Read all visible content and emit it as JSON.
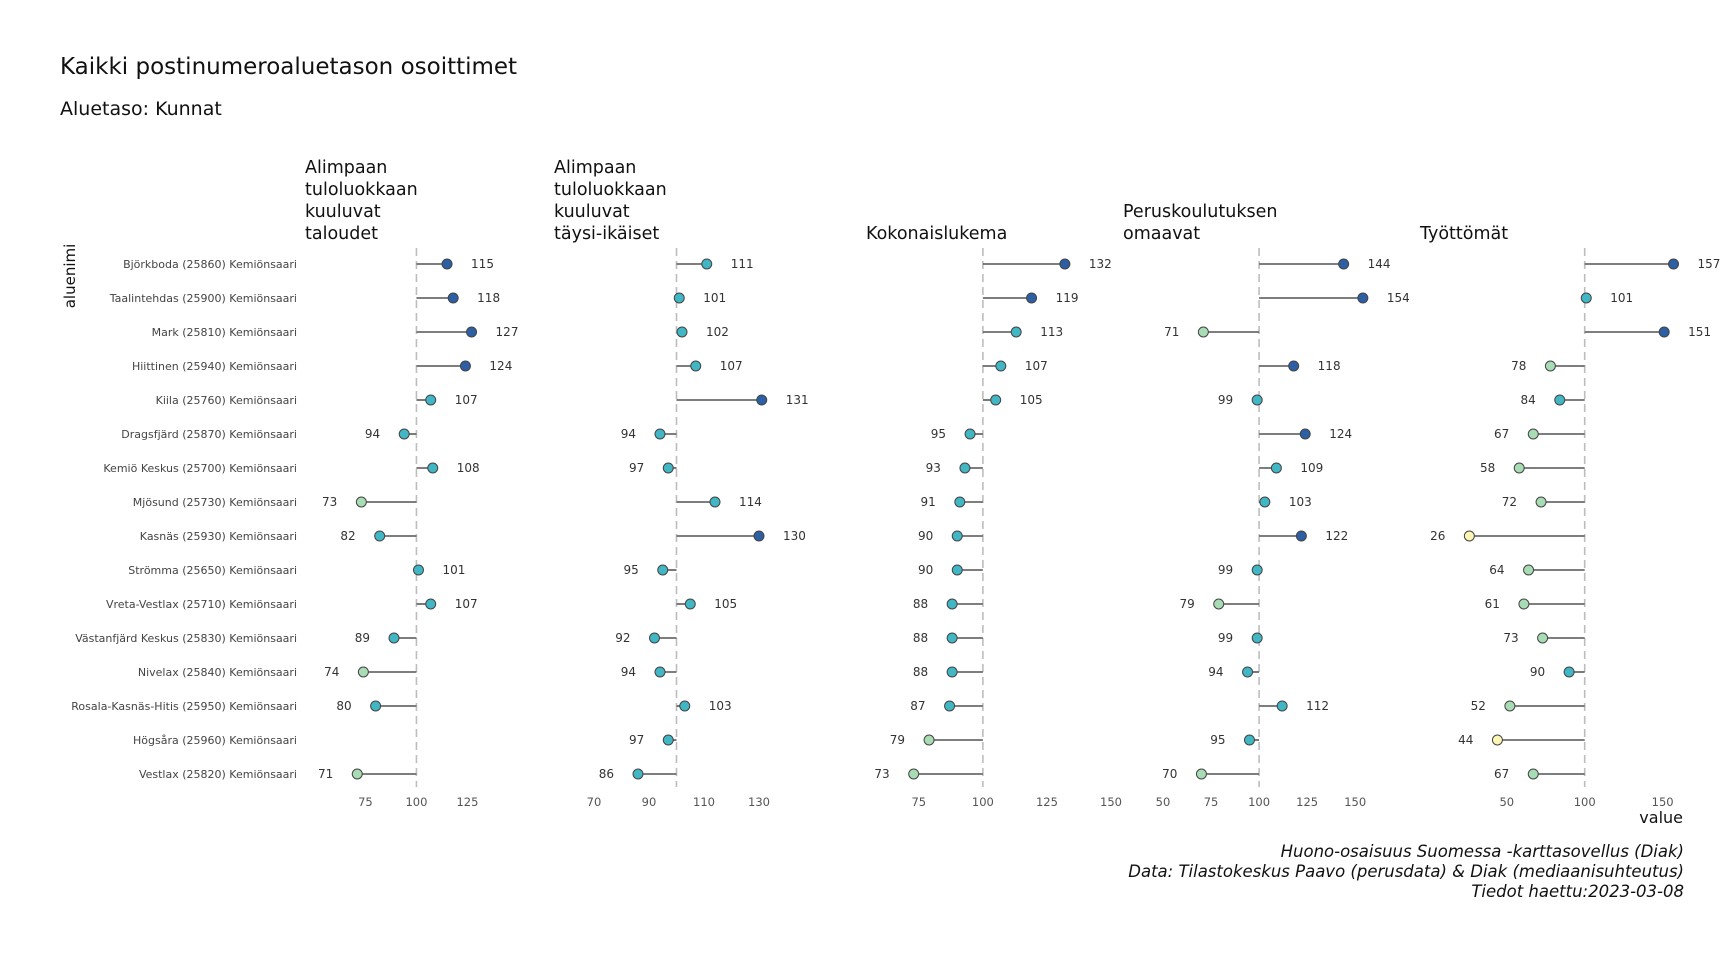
{
  "title": "Kaikki postinumeroaluetason osoittimet",
  "subtitle": "Aluetaso: Kunnat",
  "caption": {
    "line1": "Huono-osaisuus Suomessa -karttasovellus (Diak)",
    "line2": "Data: Tilastokeskus Paavo (perusdata) & Diak (mediaanisuhteutus)",
    "line3": "Tiedot haettu:2023-03-08"
  },
  "chart_data": {
    "type": "lollipop",
    "ylabel": "aluenimi",
    "xlabel": "value",
    "reference_value": 100,
    "categories": [
      "Björkboda (25860) Kemiönsaari",
      "Taalintehdas (25900) Kemiönsaari",
      "Mark (25810) Kemiönsaari",
      "Hiittinen (25940) Kemiönsaari",
      "Kiila (25760) Kemiönsaari",
      "Dragsfjärd (25870) Kemiönsaari",
      "Kemiö Keskus (25700) Kemiönsaari",
      "Mjösund (25730) Kemiönsaari",
      "Kasnäs (25930) Kemiönsaari",
      "Strömma (25650) Kemiönsaari",
      "Vreta-Vestlax (25710) Kemiönsaari",
      "Västanfjärd Keskus (25830) Kemiönsaari",
      "Nivelax (25840) Kemiönsaari",
      "Rosala-Kasnäs-Hitis (25950) Kemiönsaari",
      "Högsåra (25960) Kemiönsaari",
      "Vestlax (25820) Kemiönsaari"
    ],
    "panels": [
      {
        "title": "Alimpaan tuloluokkaan kuuluvat taloudet",
        "title_lines": [
          "Alimpaan",
          "tuloluokkaan",
          "kuuluvat",
          "taloudet"
        ],
        "xlim": [
          65,
          138
        ],
        "ticks": [
          75,
          100,
          125
        ],
        "values": [
          115,
          118,
          127,
          124,
          107,
          94,
          108,
          73,
          82,
          101,
          107,
          89,
          74,
          80,
          null,
          71
        ]
      },
      {
        "title": "Alimpaan tuloluokkaan kuuluvat täysi-ikäiset",
        "title_lines": [
          "Alimpaan",
          "tuloluokkaan",
          "kuuluvat",
          "täysi-ikäiset"
        ],
        "xlim": [
          70,
          138
        ],
        "ticks": [
          70,
          90,
          110,
          130
        ],
        "values": [
          111,
          101,
          102,
          107,
          131,
          94,
          97,
          114,
          130,
          95,
          105,
          92,
          94,
          103,
          97,
          86
        ]
      },
      {
        "title": "Kokonaislukema",
        "title_lines": [
          "Kokonaislukema"
        ],
        "xlim": [
          70,
          150
        ],
        "ticks": [
          75,
          100,
          125,
          150
        ],
        "values": [
          132,
          119,
          113,
          107,
          105,
          95,
          93,
          91,
          90,
          90,
          88,
          88,
          88,
          87,
          79,
          73
        ]
      },
      {
        "title": "Peruskoulutuksen omaavat",
        "title_lines": [
          "Peruskoulutuksen",
          "omaavat"
        ],
        "xlim": [
          50,
          165
        ],
        "ticks": [
          50,
          75,
          100,
          125,
          150
        ],
        "values": [
          144,
          154,
          71,
          118,
          99,
          124,
          109,
          103,
          122,
          99,
          79,
          99,
          94,
          112,
          95,
          70
        ]
      },
      {
        "title": "Työttömät",
        "title_lines": [
          "Työttömät"
        ],
        "xlim": [
          20,
          165
        ],
        "ticks": [
          50,
          100,
          150
        ],
        "values": [
          157,
          101,
          151,
          78,
          84,
          67,
          58,
          72,
          26,
          64,
          61,
          73,
          90,
          52,
          44,
          67
        ]
      }
    ],
    "color_scale": [
      {
        "max": 50,
        "color": "#fbf6b4"
      },
      {
        "max": 80,
        "color": "#a8dcb5"
      },
      {
        "max": 115,
        "color": "#41b6c4"
      },
      {
        "max": 999,
        "color": "#2c5fa4"
      }
    ]
  }
}
